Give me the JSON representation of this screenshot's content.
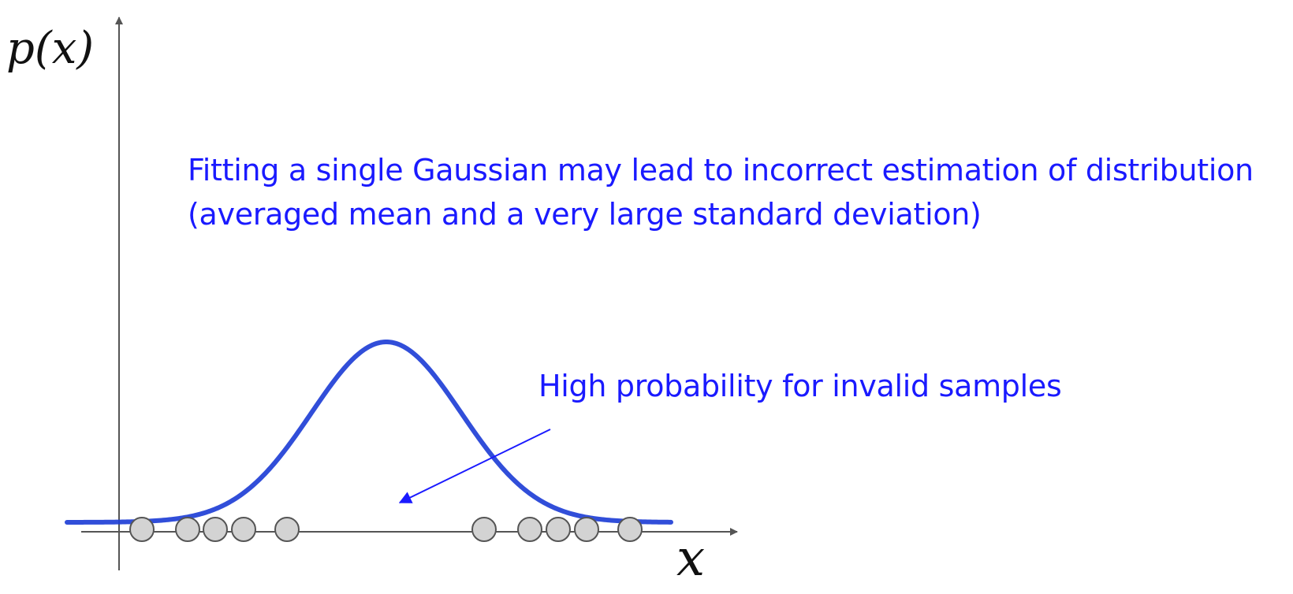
{
  "y_axis_label": "p(x)",
  "x_axis_label": "x",
  "annotation_main": {
    "line1": "Fitting a single Gaussian may lead to incorrect estimation of distribution",
    "line2": "(averaged mean and a very large standard deviation)"
  },
  "annotation_arrow": "High probability for invalid samples",
  "colors": {
    "curve": "#1f3fd6",
    "annotation_text": "#1a1aff",
    "sample_fill": "#d3d3d3",
    "sample_stroke": "#555555",
    "axis": "#555555"
  }
}
